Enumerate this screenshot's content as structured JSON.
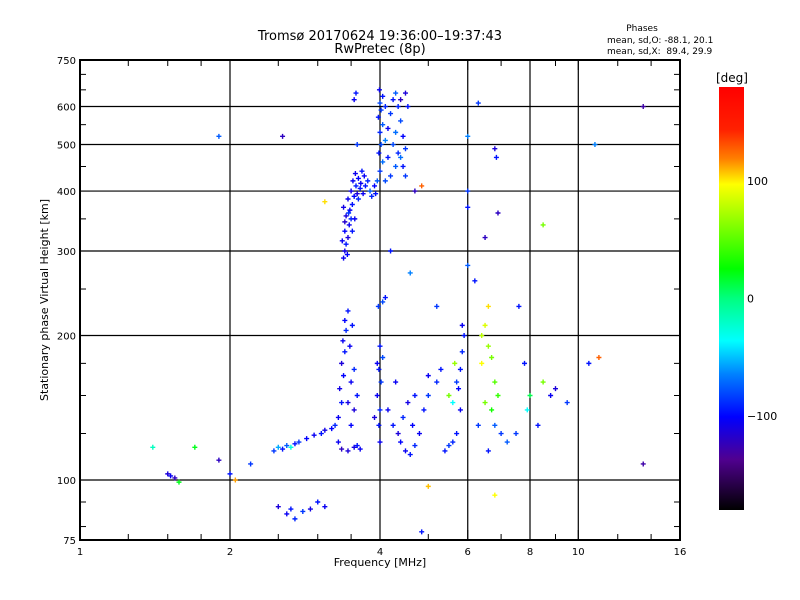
{
  "chart_data": {
    "type": "scatter",
    "title": "Tromsø 20170624 19:36:00–19:37:43",
    "subtitle": "RwPretec (8p)",
    "stats": {
      "header": "Phases",
      "line_o": "mean, sd,O: -88.1, 20.1",
      "line_x": "mean, sd,X:  89.4, 29.9"
    },
    "xlabel": "Frequency [MHz]",
    "ylabel": "Stationary phase Virtual Height [km]",
    "xscale": "log",
    "yscale": "log",
    "xlim": [
      1,
      16
    ],
    "ylim": [
      75,
      750
    ],
    "xticks": [
      1,
      2,
      4,
      6,
      8,
      10,
      16
    ],
    "xtick_labels": [
      "1",
      "2",
      "4",
      "6",
      "8",
      "10",
      "16"
    ],
    "yticks": [
      75,
      100,
      200,
      300,
      400,
      500,
      600,
      750
    ],
    "ytick_labels": [
      "75",
      "100",
      "200",
      "300",
      "400",
      "500",
      "600",
      "750"
    ],
    "xgrid": [
      2,
      4,
      6,
      8,
      10
    ],
    "ygrid": [
      100,
      200,
      300,
      400,
      500,
      600
    ],
    "grid": true,
    "colorbar": {
      "label": "[deg]",
      "range": [
        -180,
        180
      ],
      "ticks": [
        100,
        0,
        -100
      ],
      "tick_labels": [
        "100",
        "0",
        "−100"
      ]
    },
    "point_format": [
      "frequency_MHz",
      "height_km",
      "phase_deg"
    ],
    "points": [
      [
        3.38,
        290,
        -110
      ],
      [
        3.4,
        300,
        -115
      ],
      [
        3.42,
        310,
        -100
      ],
      [
        3.45,
        320,
        -120
      ],
      [
        3.4,
        330,
        -105
      ],
      [
        3.47,
        340,
        -110
      ],
      [
        3.5,
        350,
        -95
      ],
      [
        3.42,
        355,
        -118
      ],
      [
        3.48,
        365,
        -108
      ],
      [
        3.52,
        375,
        -100
      ],
      [
        3.45,
        385,
        -112
      ],
      [
        3.55,
        390,
        -105
      ],
      [
        3.5,
        400,
        -115
      ],
      [
        3.58,
        410,
        -98
      ],
      [
        3.53,
        420,
        -110
      ],
      [
        3.62,
        425,
        -105
      ],
      [
        3.57,
        435,
        -112
      ],
      [
        3.68,
        440,
        -100
      ],
      [
        3.72,
        430,
        -108
      ],
      [
        3.78,
        420,
        -95
      ],
      [
        3.66,
        415,
        -110
      ],
      [
        3.6,
        395,
        -120
      ],
      [
        3.65,
        405,
        -100
      ],
      [
        3.4,
        345,
        -125
      ],
      [
        3.36,
        315,
        -110
      ],
      [
        3.44,
        295,
        -105
      ],
      [
        3.52,
        330,
        -100
      ],
      [
        3.46,
        360,
        -90
      ],
      [
        3.56,
        350,
        -110
      ],
      [
        3.38,
        370,
        -115
      ],
      [
        3.62,
        385,
        -95
      ],
      [
        3.7,
        395,
        -110
      ],
      [
        3.74,
        410,
        -100
      ],
      [
        3.82,
        400,
        -80
      ],
      [
        3.85,
        390,
        -95
      ],
      [
        3.9,
        410,
        -105
      ],
      [
        3.95,
        420,
        -80
      ],
      [
        4.0,
        440,
        -90
      ],
      [
        4.05,
        460,
        -75
      ],
      [
        3.98,
        480,
        -100
      ],
      [
        4.02,
        500,
        -85
      ],
      [
        4.1,
        510,
        -70
      ],
      [
        4.0,
        530,
        -95
      ],
      [
        4.05,
        550,
        -80
      ],
      [
        3.97,
        570,
        -100
      ],
      [
        4.02,
        590,
        -90
      ],
      [
        4.0,
        610,
        -85
      ],
      [
        4.05,
        630,
        -100
      ],
      [
        3.99,
        650,
        -110
      ],
      [
        4.1,
        600,
        -95
      ],
      [
        4.2,
        580,
        -90
      ],
      [
        4.25,
        620,
        -100
      ],
      [
        4.3,
        640,
        -80
      ],
      [
        4.35,
        600,
        -95
      ],
      [
        4.4,
        560,
        -85
      ],
      [
        4.45,
        520,
        -105
      ],
      [
        4.5,
        490,
        -90
      ],
      [
        4.4,
        470,
        -75
      ],
      [
        4.3,
        450,
        -80
      ],
      [
        4.2,
        430,
        -90
      ],
      [
        4.15,
        470,
        -100
      ],
      [
        4.25,
        500,
        -85
      ],
      [
        4.3,
        530,
        -75
      ],
      [
        4.35,
        480,
        -95
      ],
      [
        4.45,
        450,
        -100
      ],
      [
        4.5,
        430,
        -90
      ],
      [
        4.15,
        540,
        -110
      ],
      [
        4.1,
        420,
        -85
      ],
      [
        3.92,
        395,
        -100
      ],
      [
        4.4,
        620,
        -130
      ],
      [
        4.5,
        640,
        -120
      ],
      [
        4.55,
        600,
        -100
      ],
      [
        2.45,
        115,
        -90
      ],
      [
        2.5,
        117,
        -60
      ],
      [
        2.55,
        116,
        -100
      ],
      [
        2.6,
        118,
        -80
      ],
      [
        2.65,
        117,
        -30
      ],
      [
        2.7,
        119,
        -100
      ],
      [
        2.75,
        120,
        -90
      ],
      [
        2.85,
        122,
        -105
      ],
      [
        2.95,
        124,
        -110
      ],
      [
        3.05,
        125,
        -100
      ],
      [
        3.1,
        127,
        -115
      ],
      [
        3.2,
        128,
        -105
      ],
      [
        3.25,
        130,
        -95
      ],
      [
        3.3,
        120,
        -110
      ],
      [
        3.35,
        116,
        -130
      ],
      [
        3.45,
        115,
        -120
      ],
      [
        3.55,
        117,
        -115
      ],
      [
        3.6,
        118,
        -100
      ],
      [
        3.65,
        116,
        -110
      ],
      [
        3.3,
        135,
        -110
      ],
      [
        3.35,
        145,
        -100
      ],
      [
        3.32,
        155,
        -115
      ],
      [
        3.38,
        165,
        -105
      ],
      [
        3.35,
        175,
        -120
      ],
      [
        3.4,
        185,
        -100
      ],
      [
        3.37,
        195,
        -110
      ],
      [
        3.42,
        205,
        -95
      ],
      [
        3.4,
        215,
        -105
      ],
      [
        3.45,
        225,
        -100
      ],
      [
        3.5,
        160,
        -110
      ],
      [
        3.55,
        140,
        -120
      ],
      [
        3.6,
        150,
        -100
      ],
      [
        3.5,
        130,
        -105
      ],
      [
        3.45,
        145,
        -115
      ],
      [
        3.55,
        170,
        -95
      ],
      [
        3.48,
        190,
        -110
      ],
      [
        3.52,
        210,
        -100
      ],
      [
        3.98,
        130,
        -100
      ],
      [
        4.0,
        140,
        -95
      ],
      [
        3.95,
        150,
        -110
      ],
      [
        4.02,
        160,
        -90
      ],
      [
        3.98,
        170,
        -100
      ],
      [
        4.05,
        180,
        -85
      ],
      [
        4.0,
        190,
        -100
      ],
      [
        3.97,
        230,
        -90
      ],
      [
        4.05,
        235,
        -85
      ],
      [
        4.1,
        240,
        -100
      ],
      [
        3.95,
        175,
        -110
      ],
      [
        4.0,
        120,
        -110
      ],
      [
        3.9,
        135,
        -120
      ],
      [
        4.15,
        140,
        -110
      ],
      [
        4.25,
        130,
        -100
      ],
      [
        4.35,
        125,
        -120
      ],
      [
        4.4,
        120,
        -105
      ],
      [
        4.5,
        115,
        -110
      ],
      [
        4.6,
        113,
        -100
      ],
      [
        4.7,
        118,
        -95
      ],
      [
        4.8,
        125,
        -110
      ],
      [
        4.9,
        140,
        -100
      ],
      [
        5.0,
        150,
        -90
      ],
      [
        4.55,
        145,
        -115
      ],
      [
        4.7,
        150,
        -100
      ],
      [
        4.3,
        160,
        -110
      ],
      [
        4.45,
        135,
        -95
      ],
      [
        4.65,
        130,
        -105
      ],
      [
        5.4,
        115,
        -100
      ],
      [
        5.5,
        118,
        -90
      ],
      [
        5.6,
        120,
        -95
      ],
      [
        5.7,
        125,
        -100
      ],
      [
        5.8,
        140,
        -110
      ],
      [
        5.75,
        155,
        -105
      ],
      [
        5.8,
        170,
        -100
      ],
      [
        5.85,
        185,
        -95
      ],
      [
        5.9,
        200,
        -100
      ],
      [
        5.85,
        210,
        -110
      ],
      [
        5.7,
        160,
        -90
      ],
      [
        5.6,
        145,
        -40
      ],
      [
        5.5,
        150,
        60
      ],
      [
        5.65,
        175,
        70
      ],
      [
        5.3,
        170,
        -100
      ],
      [
        5.2,
        160,
        -95
      ],
      [
        5.0,
        165,
        -110
      ],
      [
        6.4,
        200,
        80
      ],
      [
        6.5,
        210,
        90
      ],
      [
        6.6,
        190,
        70
      ],
      [
        6.7,
        180,
        60
      ],
      [
        6.8,
        160,
        50
      ],
      [
        6.9,
        150,
        40
      ],
      [
        6.7,
        140,
        30
      ],
      [
        6.5,
        145,
        60
      ],
      [
        6.4,
        175,
        100
      ],
      [
        6.6,
        230,
        110
      ],
      [
        6.8,
        130,
        -80
      ],
      [
        7.0,
        125,
        -90
      ],
      [
        6.6,
        115,
        -100
      ],
      [
        7.2,
        120,
        -80
      ],
      [
        6.3,
        130,
        -90
      ],
      [
        7.6,
        230,
        -100
      ],
      [
        7.8,
        175,
        -100
      ],
      [
        7.9,
        140,
        -40
      ],
      [
        8.0,
        150,
        10
      ],
      [
        8.5,
        160,
        60
      ],
      [
        8.8,
        150,
        -110
      ],
      [
        9.0,
        155,
        -120
      ],
      [
        9.5,
        145,
        -90
      ],
      [
        10.5,
        175,
        -100
      ],
      [
        11,
        180,
        150
      ],
      [
        8.3,
        130,
        -100
      ],
      [
        7.5,
        125,
        -90
      ],
      [
        1.5,
        103,
        -120
      ],
      [
        1.52,
        102,
        -110
      ],
      [
        1.55,
        101,
        -130
      ],
      [
        1.58,
        99,
        20
      ],
      [
        2.5,
        88,
        -120
      ],
      [
        2.6,
        85,
        -110
      ],
      [
        2.65,
        87,
        -100
      ],
      [
        2.8,
        86,
        -90
      ],
      [
        2.9,
        87,
        -115
      ],
      [
        3.0,
        90,
        -100
      ],
      [
        3.1,
        88,
        -110
      ],
      [
        2.7,
        83,
        -95
      ],
      [
        1.9,
        520,
        -80
      ],
      [
        2.55,
        520,
        -130
      ],
      [
        3.55,
        620,
        -110
      ],
      [
        3.58,
        640,
        -100
      ],
      [
        6.3,
        610,
        -90
      ],
      [
        6.0,
        520,
        -70
      ],
      [
        6.8,
        490,
        -120
      ],
      [
        6.85,
        470,
        -100
      ],
      [
        6.9,
        360,
        -130
      ],
      [
        6.0,
        400,
        -90
      ],
      [
        6.0,
        370,
        -100
      ],
      [
        6.0,
        280,
        -80
      ],
      [
        6.2,
        260,
        -100
      ],
      [
        6.5,
        320,
        -130
      ],
      [
        3.1,
        380,
        110
      ],
      [
        4.7,
        400,
        -130
      ],
      [
        4.85,
        410,
        150
      ],
      [
        4.6,
        270,
        -70
      ],
      [
        5.2,
        230,
        -90
      ],
      [
        13.5,
        600,
        -140
      ],
      [
        10.8,
        500,
        -70
      ],
      [
        8.5,
        340,
        60
      ],
      [
        13.5,
        108,
        -140
      ],
      [
        1.9,
        110,
        -130
      ],
      [
        2.0,
        103,
        -100
      ],
      [
        2.05,
        100,
        130
      ],
      [
        1.4,
        117,
        -20
      ],
      [
        1.7,
        117,
        20
      ],
      [
        2.2,
        108,
        -90
      ],
      [
        3.6,
        500,
        -90
      ],
      [
        4.2,
        300,
        -100
      ],
      [
        5.0,
        97,
        120
      ],
      [
        6.8,
        93,
        100
      ],
      [
        4.85,
        78,
        -100
      ]
    ]
  }
}
